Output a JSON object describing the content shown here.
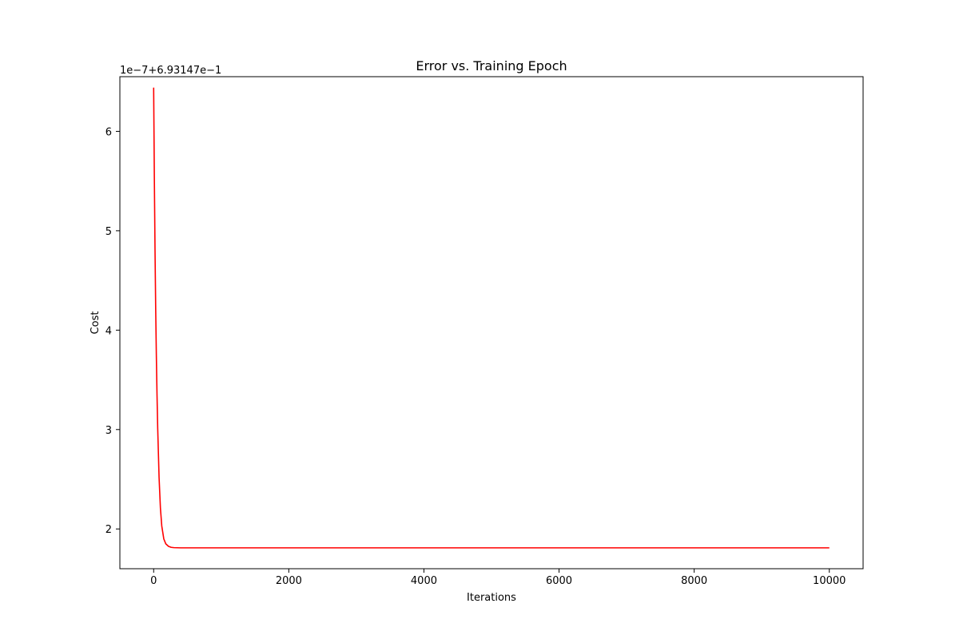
{
  "chart_data": {
    "type": "line",
    "title": "Error vs. Training Epoch",
    "xlabel": "Iterations",
    "ylabel": "Cost",
    "offset_label": "1e−7+6.93147e−1",
    "xlim": [
      -500,
      10500
    ],
    "ylim": [
      1.6,
      6.55
    ],
    "xticks": [
      0,
      2000,
      4000,
      6000,
      8000,
      10000
    ],
    "xtick_labels": [
      "0",
      "2000",
      "4000",
      "6000",
      "8000",
      "10000"
    ],
    "yticks": [
      2,
      3,
      4,
      5,
      6
    ],
    "ytick_labels": [
      "2",
      "3",
      "4",
      "5",
      "6"
    ],
    "grid": false,
    "legend": "none",
    "series": [
      {
        "color": "#ff0000",
        "x": [
          0,
          10,
          20,
          30,
          40,
          50,
          60,
          80,
          100,
          120,
          150,
          180,
          220,
          260,
          300,
          400,
          600,
          1000,
          2000,
          4000,
          6000,
          8000,
          10000
        ],
        "y": [
          6.44,
          5.55,
          4.82,
          4.22,
          3.74,
          3.34,
          3.01,
          2.52,
          2.21,
          2.03,
          1.9,
          1.85,
          1.825,
          1.815,
          1.812,
          1.81,
          1.81,
          1.81,
          1.81,
          1.81,
          1.81,
          1.81,
          1.81
        ]
      }
    ]
  }
}
